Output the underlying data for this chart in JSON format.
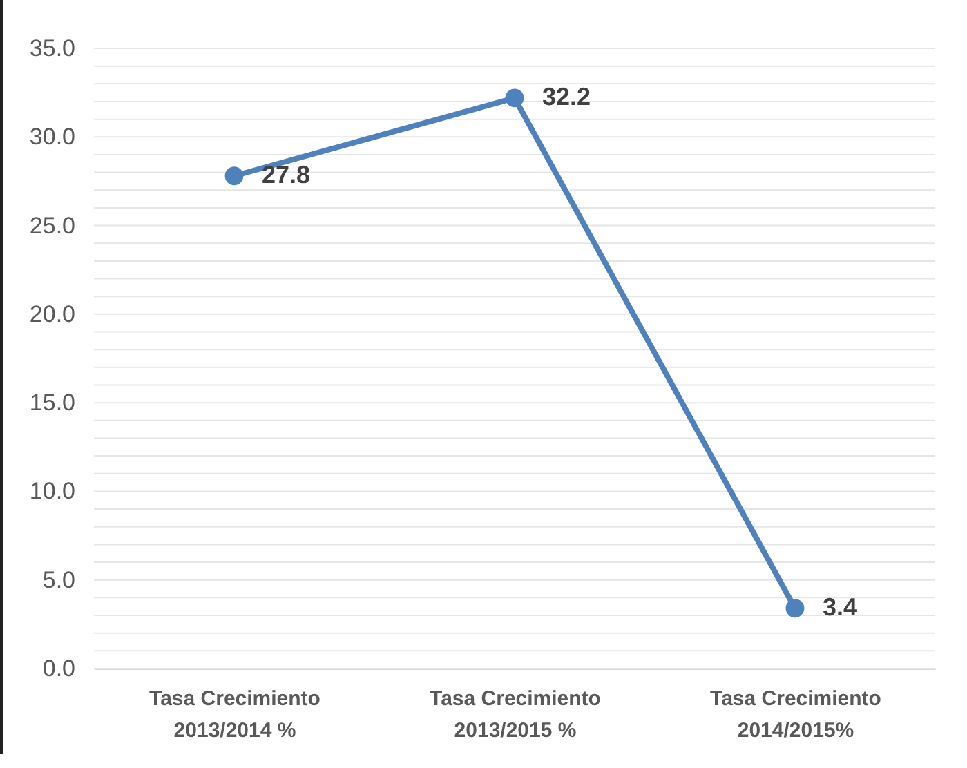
{
  "chart_data": {
    "type": "line",
    "categories": [
      "Tasa Crecimiento 2013/2014 %",
      "Tasa Crecimiento 2013/2015 %",
      "Tasa Crecimiento 2014/2015%"
    ],
    "series": [
      {
        "color": "#4f81bd",
        "values": [
          27.8,
          32.2,
          3.4
        ]
      }
    ],
    "ylim": [
      0,
      35
    ],
    "yticks": [
      {
        "value": 0,
        "label": "0.0"
      },
      {
        "value": 1,
        "label": null
      },
      {
        "value": 2,
        "label": null
      },
      {
        "value": 3,
        "label": null
      },
      {
        "value": 4,
        "label": null
      },
      {
        "value": 5,
        "label": "5.0"
      },
      {
        "value": 6,
        "label": null
      },
      {
        "value": 7,
        "label": null
      },
      {
        "value": 8,
        "label": null
      },
      {
        "value": 9,
        "label": null
      },
      {
        "value": 10,
        "label": "10.0"
      },
      {
        "value": 11,
        "label": null
      },
      {
        "value": 12,
        "label": null
      },
      {
        "value": 13,
        "label": null
      },
      {
        "value": 14,
        "label": null
      },
      {
        "value": 15,
        "label": "15.0"
      },
      {
        "value": 16,
        "label": null
      },
      {
        "value": 17,
        "label": null
      },
      {
        "value": 18,
        "label": null
      },
      {
        "value": 19,
        "label": null
      },
      {
        "value": 20,
        "label": "20.0"
      },
      {
        "value": 21,
        "label": null
      },
      {
        "value": 22,
        "label": null
      },
      {
        "value": 23,
        "label": null
      },
      {
        "value": 24,
        "label": null
      },
      {
        "value": 25,
        "label": "25.0"
      },
      {
        "value": 26,
        "label": null
      },
      {
        "value": 27,
        "label": null
      },
      {
        "value": 28,
        "label": null
      },
      {
        "value": 29,
        "label": null
      },
      {
        "value": 30,
        "label": "30.0"
      },
      {
        "value": 31,
        "label": null
      },
      {
        "value": 32,
        "label": null
      },
      {
        "value": 33,
        "label": null
      },
      {
        "value": 34,
        "label": null
      },
      {
        "value": 35,
        "label": "35.0"
      }
    ],
    "grid": "y",
    "marker": "circle",
    "line_style": "solid",
    "data_labels": true,
    "legend": false
  }
}
